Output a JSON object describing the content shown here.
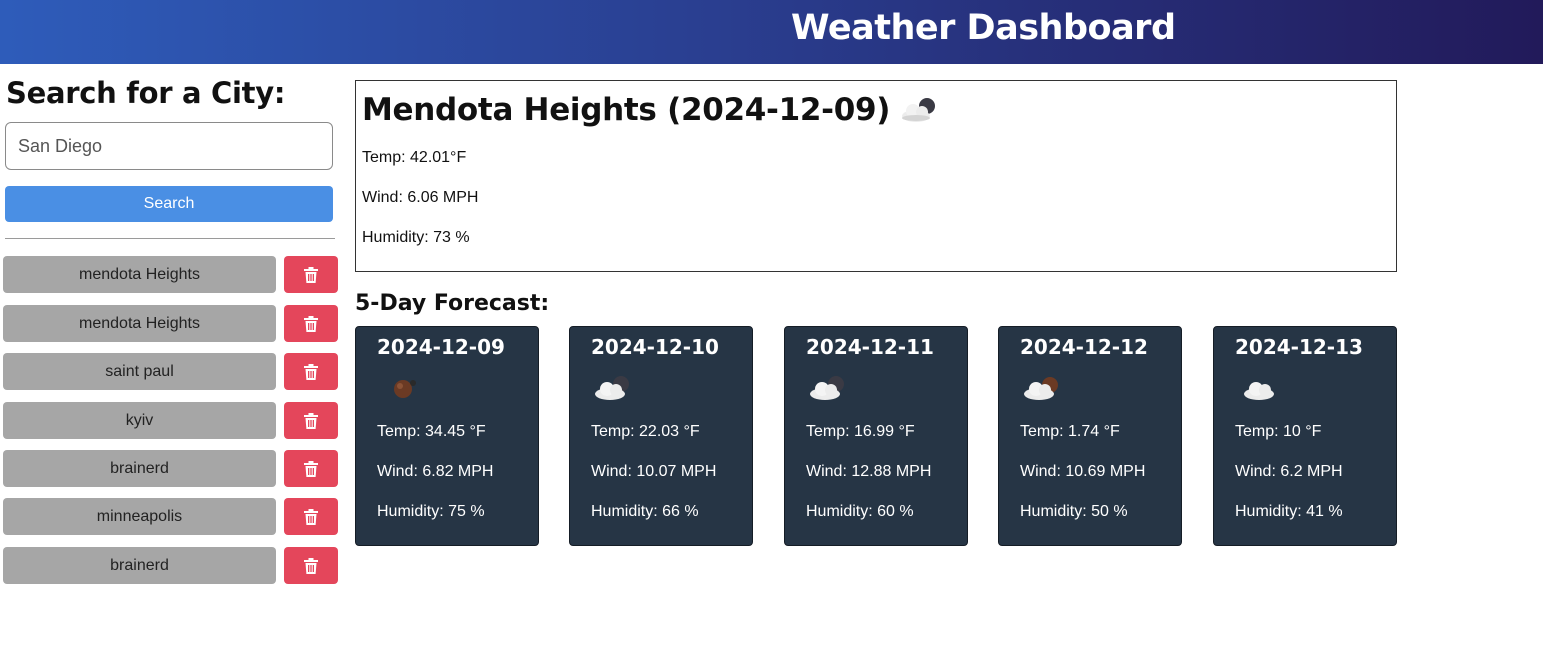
{
  "header": {
    "title": "Weather Dashboard"
  },
  "search": {
    "title": "Search for a City:",
    "input_value": "San Diego",
    "button_label": "Search"
  },
  "history": [
    {
      "city": "mendota Heights",
      "delete_icon": "trash-icon"
    },
    {
      "city": "mendota Heights",
      "delete_icon": "trash-icon"
    },
    {
      "city": "saint paul",
      "delete_icon": "trash-icon"
    },
    {
      "city": "kyiv",
      "delete_icon": "trash-icon"
    },
    {
      "city": "brainerd",
      "delete_icon": "trash-icon"
    },
    {
      "city": "minneapolis",
      "delete_icon": "trash-icon"
    },
    {
      "city": "brainerd",
      "delete_icon": "trash-icon"
    }
  ],
  "current": {
    "title": "Mendota Heights (2024-12-09)",
    "icon": "cloud-night-icon",
    "temp": "Temp: 42.01°F",
    "wind": "Wind: 6.06 MPH",
    "humidity": "Humidity: 73 %"
  },
  "forecast": {
    "title": "5-Day Forecast:",
    "days": [
      {
        "date": "2024-12-09",
        "icon": "moon-night-icon",
        "temp": "Temp: 34.45 °F",
        "wind": "Wind: 6.82 MPH",
        "humidity": "Humidity: 75 %"
      },
      {
        "date": "2024-12-10",
        "icon": "cloud-night-icon",
        "temp": "Temp: 22.03 °F",
        "wind": "Wind: 10.07 MPH",
        "humidity": "Humidity: 66 %"
      },
      {
        "date": "2024-12-11",
        "icon": "cloud-night-icon",
        "temp": "Temp: 16.99 °F",
        "wind": "Wind: 12.88 MPH",
        "humidity": "Humidity: 60 %"
      },
      {
        "date": "2024-12-12",
        "icon": "partly-cloudy-night-icon",
        "temp": "Temp: 1.74 °F",
        "wind": "Wind: 10.69 MPH",
        "humidity": "Humidity: 50 %"
      },
      {
        "date": "2024-12-13",
        "icon": "cloud-icon",
        "temp": "Temp: 10 °F",
        "wind": "Wind: 6.2 MPH",
        "humidity": "Humidity: 41 %"
      }
    ]
  },
  "colors": {
    "header_start": "#2e5cba",
    "header_end": "#221a5a",
    "search_button": "#4a8fe4",
    "history_button": "#a6a6a6",
    "delete_button": "#e4465b",
    "card_bg": "#263545"
  }
}
